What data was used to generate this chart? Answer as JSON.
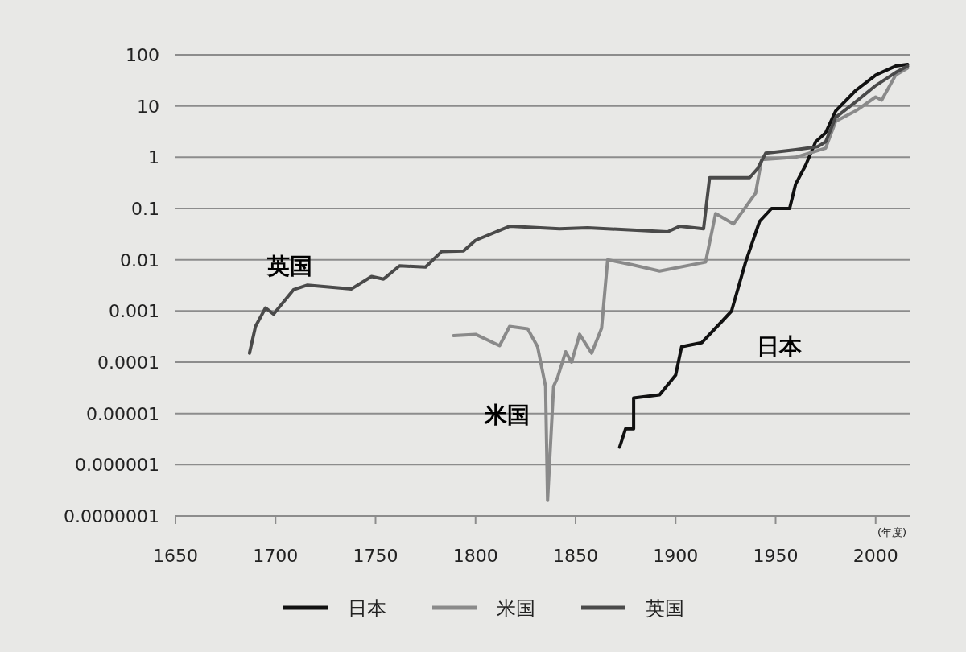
{
  "chart_data": {
    "type": "line",
    "xlabel": "(年度)",
    "log": "y",
    "grid": "y",
    "legend": "bottom",
    "xlim": [
      1650,
      2017
    ],
    "ylim": [
      1e-07,
      100
    ],
    "xticks": [
      1650,
      1700,
      1750,
      1800,
      1850,
      1900,
      1950,
      2000
    ],
    "yticks": [
      100,
      10,
      1,
      0.1,
      0.01,
      0.001,
      {
        "value": 0.0001,
        "label": "0.0001"
      },
      {
        "value": 1e-05,
        "label": "0.00001"
      },
      {
        "value": 1e-06,
        "label": "0.000001"
      },
      {
        "value": 1e-07,
        "label": "0.0000001"
      }
    ],
    "annotations": [
      "英国",
      "米国",
      "日本"
    ],
    "series": [
      {
        "name": "日本",
        "color": "#111111",
        "x": [
          1872,
          1875,
          1879,
          1879,
          1892,
          1900,
          1903,
          1913,
          1924,
          1928,
          1935,
          1942,
          1948,
          1957,
          1960,
          1965,
          1970,
          1975,
          1980,
          1990,
          2000,
          2010,
          2016
        ],
        "values": [
          2.2e-06,
          5e-06,
          5e-06,
          2e-05,
          2.3e-05,
          5.6e-05,
          0.0002,
          0.00024,
          0.00068,
          0.001,
          0.009,
          0.056,
          0.1,
          0.1,
          0.3,
          0.7,
          2,
          3,
          8,
          20,
          40,
          60,
          65
        ]
      },
      {
        "name": "米国",
        "color": "#8a8a8a",
        "x": [
          1789,
          1800,
          1812,
          1817,
          1826,
          1831,
          1835,
          1836,
          1839,
          1841,
          1845,
          1848,
          1852,
          1858,
          1863,
          1866,
          1878,
          1892,
          1915,
          1920,
          1929,
          1940,
          1943,
          1960,
          1975,
          1980,
          1990,
          2000,
          2003,
          2010,
          2016
        ],
        "values": [
          0.00033,
          0.00035,
          0.00021,
          0.0005,
          0.00045,
          0.0002,
          3.4e-05,
          2e-07,
          3.4e-05,
          5e-05,
          0.00016,
          0.0001,
          0.00035,
          0.00015,
          0.00046,
          0.01,
          0.008,
          0.006,
          0.009,
          0.08,
          0.05,
          0.2,
          0.9,
          1,
          1.5,
          5,
          8,
          15,
          13,
          40,
          55
        ]
      },
      {
        "name": "英国",
        "color": "#4a4a4a",
        "x": [
          1687,
          1690,
          1695,
          1699,
          1709,
          1716,
          1738,
          1748,
          1754,
          1762,
          1775,
          1783,
          1794,
          1800,
          1817,
          1842,
          1856,
          1896,
          1902,
          1914,
          1917,
          1937,
          1941,
          1945,
          1960,
          1971,
          1975,
          1980,
          1990,
          2000,
          2010,
          2016
        ],
        "values": [
          0.00015,
          0.0005,
          0.00115,
          0.00087,
          0.0026,
          0.0032,
          0.0027,
          0.0047,
          0.0042,
          0.0076,
          0.0072,
          0.0144,
          0.0148,
          0.024,
          0.045,
          0.04,
          0.042,
          0.035,
          0.045,
          0.04,
          0.4,
          0.4,
          0.6,
          1.2,
          1.4,
          1.6,
          2,
          6,
          12,
          25,
          45,
          60
        ]
      }
    ]
  }
}
